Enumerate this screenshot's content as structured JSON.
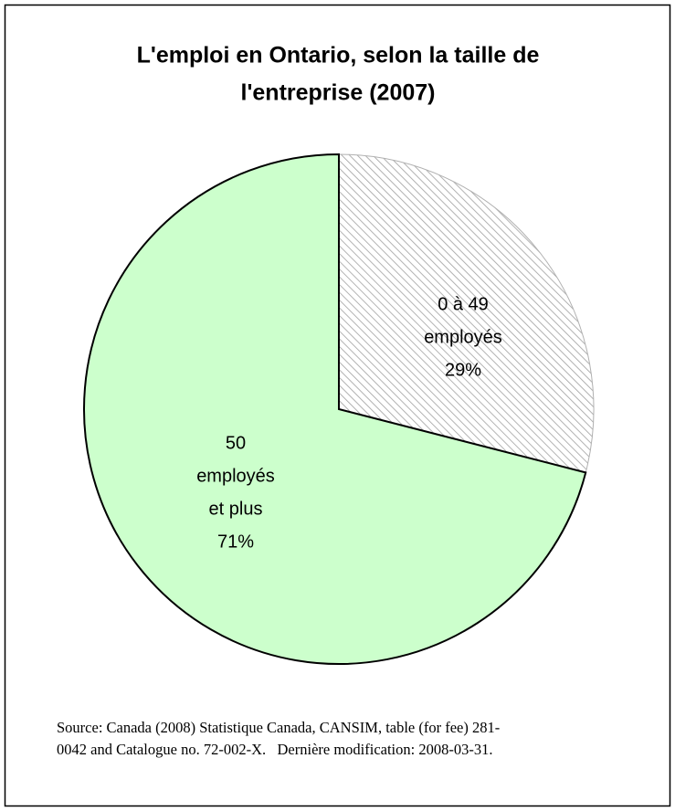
{
  "chart_data": {
    "type": "pie",
    "title": [
      "L'emploi en Ontario, selon la taille de",
      "l'entreprise (2007)"
    ],
    "categories": [
      [
        "0 à 49",
        "employés"
      ],
      [
        "50",
        "employés",
        "et plus"
      ]
    ],
    "values": [
      29,
      71
    ],
    "value_labels": [
      "29%",
      "71%"
    ],
    "colors": [
      "#a0a0a0",
      "#ccffcc"
    ],
    "fills": [
      "hatch",
      "solid"
    ],
    "start_angle": 0,
    "direction": "clockwise",
    "source": [
      "Source: Canada (2008) Statistique Canada, CANSIM, table (for fee) 281-",
      "0042 and Catalogue no. 72-002-X.   Dernière modification: 2008-03-31."
    ]
  }
}
